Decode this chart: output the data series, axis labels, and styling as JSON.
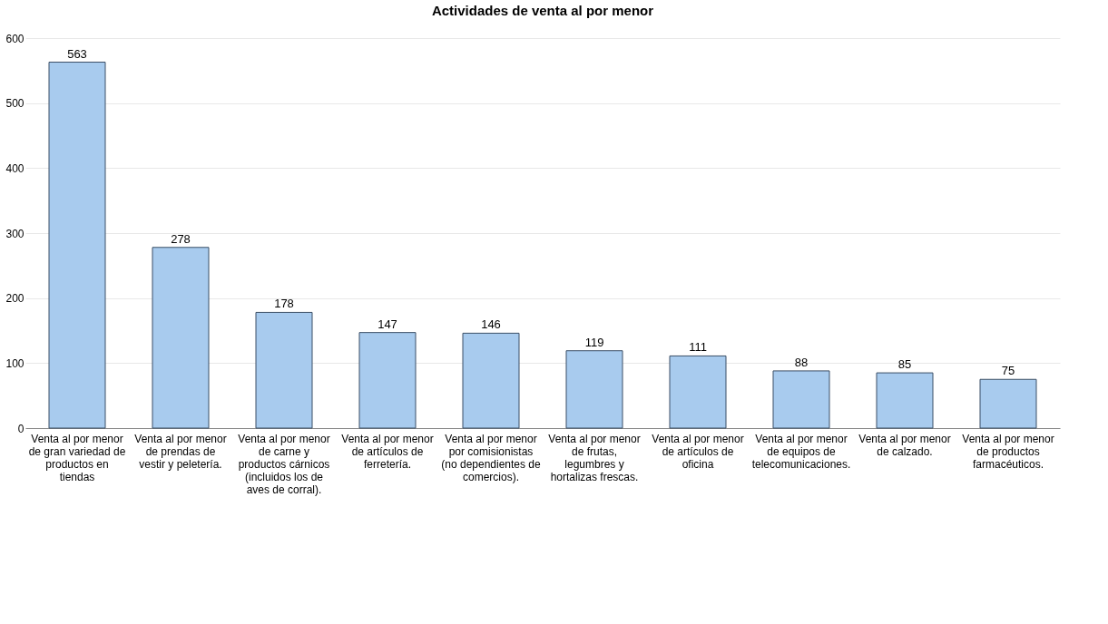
{
  "chart_data": {
    "type": "bar",
    "title": "Actividades de venta al por menor",
    "categories": [
      "Venta al por menor de gran variedad de productos en tiendas",
      "Venta al por menor de prendas de vestir y peletería.",
      "Venta al por menor de carne y productos cárnicos (incluidos los de aves de corral).",
      "Venta al por menor de artículos de ferretería.",
      "Venta al por menor por comisionistas (no dependientes de comercios).",
      "Venta al por menor de frutas, legumbres y hortalizas frescas.",
      "Venta al por menor de artículos de oficina",
      "Venta al por menor de equipos de telecomunicaciones.",
      "Venta al por menor de calzado.",
      "Venta al por menor de productos farmacéuticos."
    ],
    "values": [
      563,
      278,
      178,
      147,
      146,
      119,
      111,
      88,
      85,
      75
    ],
    "color": "#a8cbee",
    "ylim": [
      0,
      600
    ],
    "yticks": [
      0,
      100,
      200,
      300,
      400,
      500,
      600
    ],
    "grid": "y",
    "data_labels": true
  }
}
